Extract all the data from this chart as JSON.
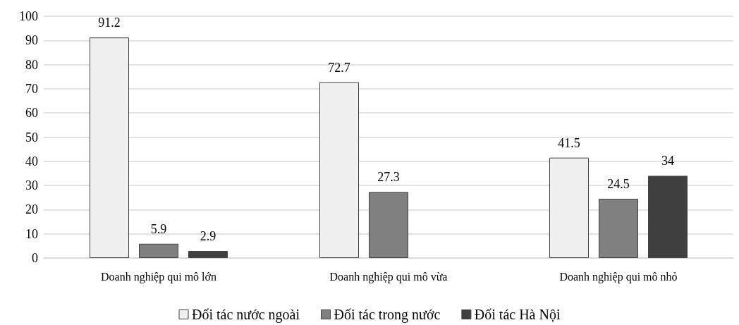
{
  "chart_data": {
    "type": "bar",
    "categories": [
      "Doanh nghiệp qui mô lớn",
      "Doanh nghiệp qui mô vừa",
      "Doanh nghiệp qui mô nhỏ"
    ],
    "series": [
      {
        "name": "Đối tác nước ngoài",
        "color": "#f0f0f0",
        "values": [
          91.2,
          72.7,
          41.5
        ]
      },
      {
        "name": "Đối tác trong nước",
        "color": "#808080",
        "values": [
          5.9,
          27.3,
          24.5
        ]
      },
      {
        "name": "Đối tác Hà Nội",
        "color": "#404040",
        "values": [
          2.9,
          null,
          34
        ]
      }
    ],
    "ylim": [
      0,
      100
    ],
    "yticks": [
      0,
      10,
      20,
      30,
      40,
      50,
      60,
      70,
      80,
      90,
      100
    ],
    "grid": "y",
    "legend": "bottom",
    "data_labels": true
  }
}
